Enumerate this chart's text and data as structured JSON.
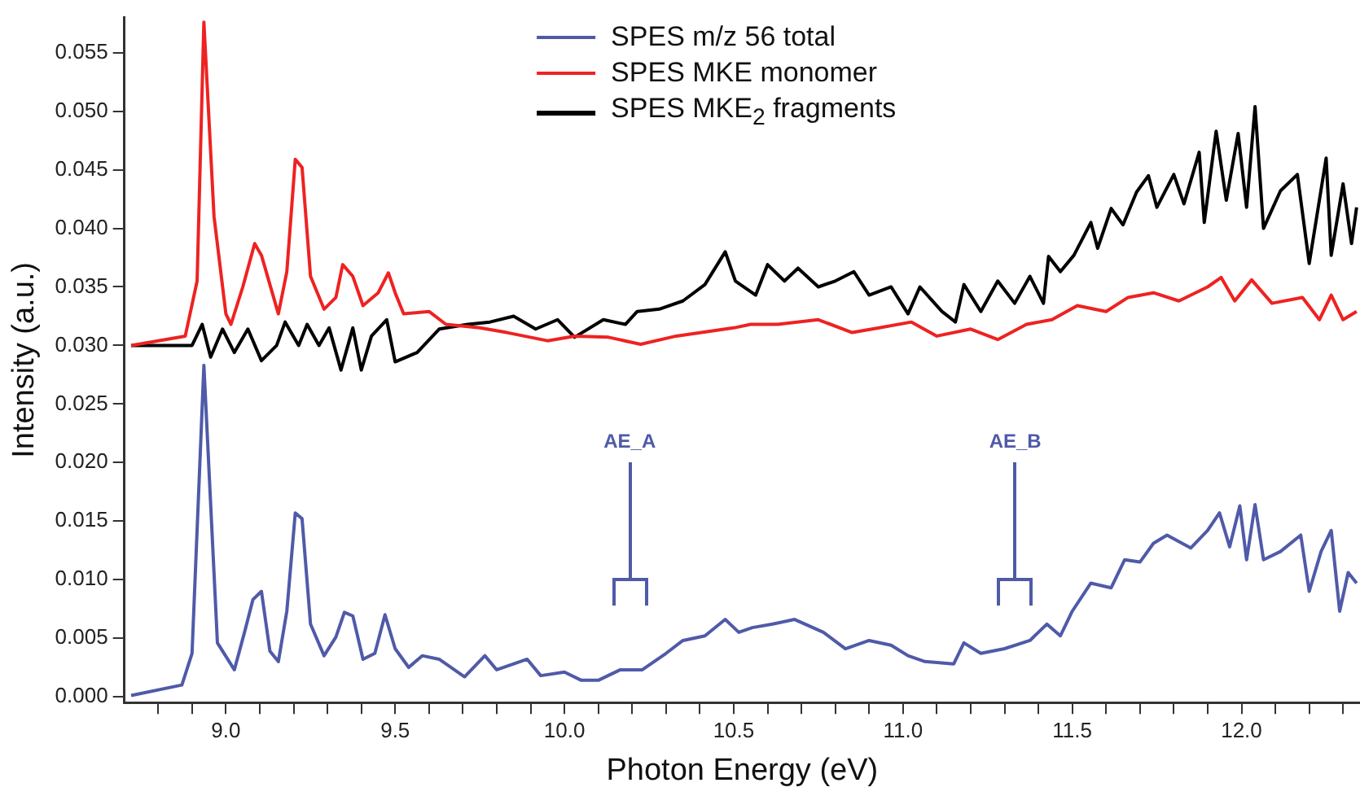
{
  "chart_data": {
    "type": "line",
    "xlabel": "Photon Energy (eV)",
    "ylabel": "Intensity (a.u.)",
    "xlim": [
      8.7,
      12.35
    ],
    "ylim": [
      -0.0005,
      0.058
    ],
    "xticks": [
      {
        "value": 8.8,
        "label": null
      },
      {
        "value": 8.9,
        "label": null
      },
      {
        "value": 9.0,
        "label": "9.0"
      },
      {
        "value": 9.1,
        "label": null
      },
      {
        "value": 9.2,
        "label": null
      },
      {
        "value": 9.3,
        "label": null
      },
      {
        "value": 9.4,
        "label": null
      },
      {
        "value": 9.5,
        "label": "9.5"
      },
      {
        "value": 9.6,
        "label": null
      },
      {
        "value": 9.7,
        "label": null
      },
      {
        "value": 9.8,
        "label": null
      },
      {
        "value": 9.9,
        "label": null
      },
      {
        "value": 10.0,
        "label": "10.0"
      },
      {
        "value": 10.1,
        "label": null
      },
      {
        "value": 10.2,
        "label": null
      },
      {
        "value": 10.3,
        "label": null
      },
      {
        "value": 10.4,
        "label": null
      },
      {
        "value": 10.5,
        "label": "10.5"
      },
      {
        "value": 10.6,
        "label": null
      },
      {
        "value": 10.7,
        "label": null
      },
      {
        "value": 10.8,
        "label": null
      },
      {
        "value": 10.9,
        "label": null
      },
      {
        "value": 11.0,
        "label": "11.0"
      },
      {
        "value": 11.1,
        "label": null
      },
      {
        "value": 11.2,
        "label": null
      },
      {
        "value": 11.3,
        "label": null
      },
      {
        "value": 11.4,
        "label": null
      },
      {
        "value": 11.5,
        "label": "11.5"
      },
      {
        "value": 11.6,
        "label": null
      },
      {
        "value": 11.7,
        "label": null
      },
      {
        "value": 11.8,
        "label": null
      },
      {
        "value": 11.9,
        "label": null
      },
      {
        "value": 12.0,
        "label": "12.0"
      },
      {
        "value": 12.1,
        "label": null
      },
      {
        "value": 12.2,
        "label": null
      },
      {
        "value": 12.3,
        "label": null
      }
    ],
    "yticks": [
      {
        "value": 0,
        "label": "0.000"
      },
      {
        "value": 0.005,
        "label": "0.005"
      },
      {
        "value": 0.01,
        "label": "0.010"
      },
      {
        "value": 0.015,
        "label": "0.015"
      },
      {
        "value": 0.02,
        "label": "0.020"
      },
      {
        "value": 0.025,
        "label": "0.025"
      },
      {
        "value": 0.03,
        "label": "0.030"
      },
      {
        "value": 0.035,
        "label": "0.035"
      },
      {
        "value": 0.04,
        "label": "0.040"
      },
      {
        "value": 0.045,
        "label": "0.045"
      },
      {
        "value": 0.05,
        "label": "0.050"
      },
      {
        "value": 0.055,
        "label": "0.055"
      }
    ],
    "grid": false,
    "legend": "top",
    "marker": "none",
    "line_style": "solid",
    "annotations": [
      "AE_A",
      "AE_B"
    ],
    "series": [
      {
        "name": "SPES m/z 56 total",
        "color": "#4f5aa8",
        "x": [
          8.72,
          8.87,
          8.9,
          8.935,
          8.975,
          9.025,
          9.055,
          9.08,
          9.105,
          9.13,
          9.155,
          9.18,
          9.205,
          9.225,
          9.25,
          9.29,
          9.325,
          9.35,
          9.375,
          9.405,
          9.44,
          9.47,
          9.5,
          9.54,
          9.58,
          9.63,
          9.705,
          9.765,
          9.8,
          9.89,
          9.93,
          10.0,
          10.05,
          10.1,
          10.165,
          10.23,
          10.3,
          10.35,
          10.415,
          10.475,
          10.515,
          10.555,
          10.615,
          10.68,
          10.765,
          10.83,
          10.9,
          10.965,
          11.015,
          11.065,
          11.15,
          11.18,
          11.23,
          11.3,
          11.375,
          11.425,
          11.465,
          11.5,
          11.555,
          11.615,
          11.655,
          11.7,
          11.74,
          11.78,
          11.85,
          11.9,
          11.935,
          11.965,
          11.995,
          12.015,
          12.04,
          12.065,
          12.115,
          12.175,
          12.2,
          12.235,
          12.265,
          12.29,
          12.315,
          12.34
        ],
        "values": [
          0.0001,
          0.001,
          0.0037,
          0.0283,
          0.0046,
          0.0023,
          0.0055,
          0.0083,
          0.009,
          0.0039,
          0.003,
          0.0073,
          0.0157,
          0.0152,
          0.0062,
          0.0035,
          0.0051,
          0.0072,
          0.0069,
          0.0032,
          0.0037,
          0.007,
          0.0041,
          0.0025,
          0.0035,
          0.0032,
          0.0017,
          0.0035,
          0.0023,
          0.0032,
          0.0018,
          0.0021,
          0.0014,
          0.0014,
          0.0023,
          0.0023,
          0.0037,
          0.0048,
          0.0052,
          0.0066,
          0.0055,
          0.0059,
          0.0062,
          0.0066,
          0.0055,
          0.0041,
          0.0048,
          0.0044,
          0.0035,
          0.003,
          0.0028,
          0.0046,
          0.0037,
          0.0041,
          0.0048,
          0.0062,
          0.0052,
          0.0073,
          0.0097,
          0.0093,
          0.0117,
          0.0115,
          0.0131,
          0.0138,
          0.0127,
          0.0142,
          0.0157,
          0.0128,
          0.0163,
          0.0117,
          0.0164,
          0.0117,
          0.0124,
          0.0138,
          0.009,
          0.0124,
          0.0142,
          0.0073,
          0.0106,
          0.0097
        ]
      },
      {
        "name": "SPES MKE monomer",
        "color": "#ee2222",
        "x": [
          8.72,
          8.88,
          8.915,
          8.935,
          8.965,
          9.0,
          9.015,
          9.05,
          9.085,
          9.105,
          9.155,
          9.18,
          9.205,
          9.225,
          9.25,
          9.29,
          9.325,
          9.345,
          9.375,
          9.405,
          9.45,
          9.48,
          9.5,
          9.525,
          9.6,
          9.65,
          9.75,
          9.83,
          9.95,
          10.03,
          10.13,
          10.225,
          10.33,
          10.5,
          10.55,
          10.63,
          10.75,
          10.85,
          10.93,
          11.025,
          11.1,
          11.2,
          11.28,
          11.365,
          11.44,
          11.515,
          11.6,
          11.665,
          11.74,
          11.815,
          11.9,
          11.94,
          11.98,
          12.03,
          12.09,
          12.18,
          12.23,
          12.265,
          12.3,
          12.34
        ],
        "values": [
          0.03,
          0.0308,
          0.0355,
          0.0576,
          0.041,
          0.0327,
          0.0318,
          0.035,
          0.0387,
          0.0377,
          0.0327,
          0.0363,
          0.0459,
          0.0452,
          0.0359,
          0.0331,
          0.0341,
          0.0369,
          0.0359,
          0.0334,
          0.0345,
          0.0362,
          0.0345,
          0.0327,
          0.0329,
          0.0318,
          0.0315,
          0.0311,
          0.0304,
          0.0308,
          0.0307,
          0.0301,
          0.0308,
          0.0315,
          0.0318,
          0.0318,
          0.0322,
          0.0311,
          0.0315,
          0.032,
          0.0308,
          0.0314,
          0.0305,
          0.0318,
          0.0322,
          0.0334,
          0.0329,
          0.0341,
          0.0345,
          0.0338,
          0.035,
          0.0358,
          0.0338,
          0.0356,
          0.0336,
          0.0341,
          0.0322,
          0.0343,
          0.0322,
          0.0329
        ]
      },
      {
        "name": "SPES MKE$_{2}$ fragments",
        "color": "#000000",
        "x": [
          8.72,
          8.9,
          8.93,
          8.955,
          8.99,
          9.025,
          9.065,
          9.105,
          9.15,
          9.175,
          9.215,
          9.24,
          9.275,
          9.305,
          9.34,
          9.375,
          9.4,
          9.43,
          9.475,
          9.5,
          9.565,
          9.63,
          9.715,
          9.78,
          9.85,
          9.915,
          9.98,
          10.03,
          10.115,
          10.18,
          10.215,
          10.28,
          10.35,
          10.415,
          10.475,
          10.505,
          10.565,
          10.6,
          10.65,
          10.69,
          10.75,
          10.8,
          10.855,
          10.9,
          10.965,
          11.015,
          11.05,
          11.115,
          11.155,
          11.18,
          11.23,
          11.28,
          11.33,
          11.375,
          11.415,
          11.43,
          11.465,
          11.505,
          11.555,
          11.575,
          11.615,
          11.65,
          11.69,
          11.725,
          11.75,
          11.8,
          11.83,
          11.875,
          11.89,
          11.925,
          11.955,
          11.99,
          12.015,
          12.04,
          12.065,
          12.115,
          12.165,
          12.2,
          12.25,
          12.265,
          12.3,
          12.325,
          12.34
        ],
        "values": [
          0.03,
          0.03,
          0.0318,
          0.029,
          0.0314,
          0.0294,
          0.0314,
          0.0287,
          0.03,
          0.032,
          0.03,
          0.0318,
          0.03,
          0.0315,
          0.0279,
          0.0315,
          0.0279,
          0.0308,
          0.0322,
          0.0286,
          0.0294,
          0.0314,
          0.0318,
          0.032,
          0.0325,
          0.0314,
          0.0322,
          0.0307,
          0.0322,
          0.0318,
          0.0329,
          0.0331,
          0.0338,
          0.0352,
          0.038,
          0.0355,
          0.0343,
          0.0369,
          0.0355,
          0.0366,
          0.035,
          0.0355,
          0.0363,
          0.0343,
          0.035,
          0.0327,
          0.035,
          0.0329,
          0.032,
          0.0352,
          0.0329,
          0.0355,
          0.0336,
          0.0359,
          0.0336,
          0.0376,
          0.0363,
          0.0377,
          0.0405,
          0.0383,
          0.0417,
          0.0403,
          0.0431,
          0.0445,
          0.0418,
          0.0446,
          0.0421,
          0.0465,
          0.0405,
          0.0483,
          0.0424,
          0.0481,
          0.0418,
          0.0504,
          0.04,
          0.0432,
          0.0446,
          0.037,
          0.046,
          0.0377,
          0.0438,
          0.0387,
          0.0418
        ]
      }
    ]
  }
}
